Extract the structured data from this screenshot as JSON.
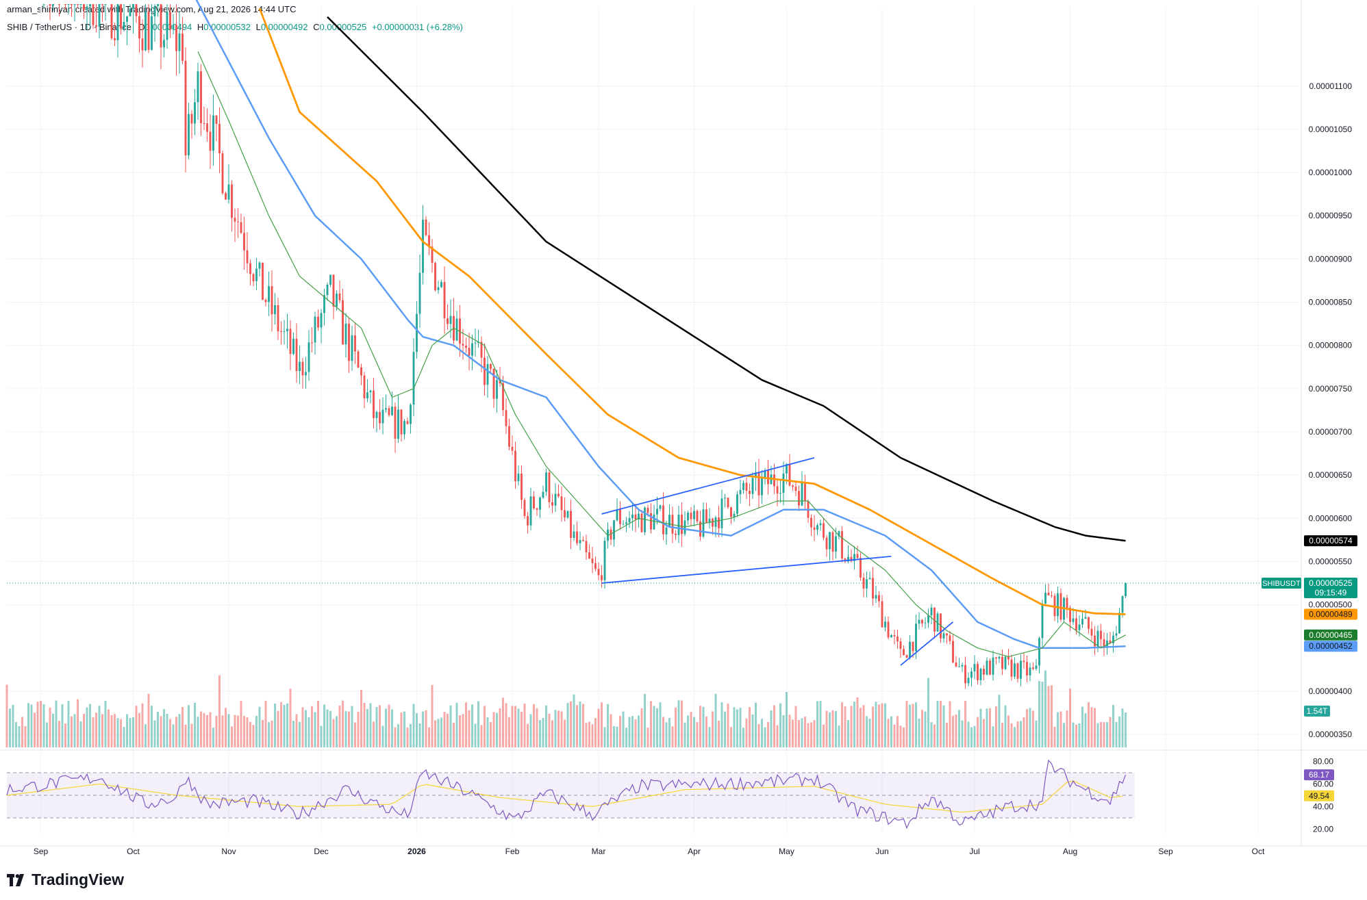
{
  "header": {
    "created_by": "arman_shirinyan created with TradingView.com, Aug 21, 2026 14:44 UTC"
  },
  "legend": {
    "symbol": "SHIB / TetherUS · 1D · Binance",
    "open_label": "O",
    "open": "0.00000494",
    "high_label": "H",
    "high": "0.00000532",
    "low_label": "L",
    "low": "0.00000492",
    "close_label": "C",
    "close": "0.00000525",
    "change": "+0.00000031 (+6.28%)"
  },
  "brand": {
    "name": "TradingView"
  },
  "colors": {
    "up": "#26a69a",
    "down": "#ef5350",
    "ma_black": "#000000",
    "ma_orange": "#ff9800",
    "ma_blue": "#5b9cf6",
    "ma_green": "#43a047",
    "rsi": "#7e57c2",
    "rsi_ma": "#f5d538",
    "trendline": "#2962ff"
  },
  "price_badges": [
    {
      "name": "ma-black-badge",
      "text": "0.00000574",
      "value": 5.74e-06,
      "bg": "#000000",
      "fg": "#ffffff"
    },
    {
      "name": "last-price-badge",
      "label": "SHIBUSDT",
      "text": "0.00000525",
      "sub": "09:15:49",
      "value": 5.25e-06,
      "bg": "#089981",
      "fg": "#ffffff"
    },
    {
      "name": "ma-orange-badge",
      "text": "0.00000489",
      "value": 4.89e-06,
      "bg": "#ff9800",
      "fg": "#131722"
    },
    {
      "name": "ma-green-badge",
      "text": "0.00000465",
      "value": 4.65e-06,
      "bg": "#1b7d2b",
      "fg": "#ffffff"
    },
    {
      "name": "ma-blue-badge",
      "text": "0.00000452",
      "value": 4.52e-06,
      "bg": "#5b9cf6",
      "fg": "#131722"
    }
  ],
  "volume_badge": {
    "text": "1.54T"
  },
  "rsi_badges": [
    {
      "name": "rsi-badge",
      "text": "68.17",
      "value": 68.17,
      "bg": "#7e57c2",
      "fg": "#ffffff"
    },
    {
      "name": "rsi-ma-badge",
      "text": "49.54",
      "value": 49.54,
      "bg": "#f5d538",
      "fg": "#131722"
    }
  ],
  "chart_data": {
    "type": "candlestick",
    "x_ticks": [
      {
        "label": "Sep",
        "day": 11,
        "bold": false
      },
      {
        "label": "Oct",
        "day": 41,
        "bold": false
      },
      {
        "label": "Nov",
        "day": 72,
        "bold": false
      },
      {
        "label": "Dec",
        "day": 102,
        "bold": false
      },
      {
        "label": "2026",
        "day": 133,
        "bold": true
      },
      {
        "label": "Feb",
        "day": 164,
        "bold": false
      },
      {
        "label": "Mar",
        "day": 192,
        "bold": false
      },
      {
        "label": "Apr",
        "day": 223,
        "bold": false
      },
      {
        "label": "May",
        "day": 253,
        "bold": false
      },
      {
        "label": "Jun",
        "day": 284,
        "bold": false
      },
      {
        "label": "Jul",
        "day": 314,
        "bold": false
      },
      {
        "label": "Aug",
        "day": 345,
        "bold": false
      },
      {
        "label": "Sep",
        "day": 376,
        "bold": false
      },
      {
        "label": "Oct",
        "day": 406,
        "bold": false
      }
    ],
    "x_range": [
      0,
      420
    ],
    "y_ticks": [
      {
        "label": "0.00001100",
        "value": 1.1e-05
      },
      {
        "label": "0.00001050",
        "value": 1.05e-05
      },
      {
        "label": "0.00001000",
        "value": 1e-05
      },
      {
        "label": "0.00000950",
        "value": 9.5e-06
      },
      {
        "label": "0.00000900",
        "value": 9e-06
      },
      {
        "label": "0.00000850",
        "value": 8.5e-06
      },
      {
        "label": "0.00000800",
        "value": 8e-06
      },
      {
        "label": "0.00000750",
        "value": 7.5e-06
      },
      {
        "label": "0.00000700",
        "value": 7e-06
      },
      {
        "label": "0.00000650",
        "value": 6.5e-06
      },
      {
        "label": "0.00000600",
        "value": 6e-06
      },
      {
        "label": "0.00000550",
        "value": 5.5e-06
      },
      {
        "label": "0.00000500",
        "value": 5e-06
      },
      {
        "label": "0.00000400",
        "value": 4e-06
      },
      {
        "label": "0.00000350",
        "value": 3.5e-06
      }
    ],
    "y_range": [
      3.35e-06,
      1.16e-05
    ],
    "price_anchors": [
      [
        0,
        1.25e-05
      ],
      [
        57,
        1.15e-05
      ],
      [
        58,
        1.02e-05
      ],
      [
        62,
        1.1e-05
      ],
      [
        72,
        9.8e-06
      ],
      [
        82,
        8.7e-06
      ],
      [
        95,
        7.7e-06
      ],
      [
        105,
        8.6e-06
      ],
      [
        110,
        8.1e-06
      ],
      [
        120,
        7.1e-06
      ],
      [
        130,
        7.1e-06
      ],
      [
        135,
        9.2e-06
      ],
      [
        145,
        8.3e-06
      ],
      [
        160,
        7.4e-06
      ],
      [
        168,
        6e-06
      ],
      [
        175,
        6.4e-06
      ],
      [
        185,
        5.7e-06
      ],
      [
        192,
        5.3e-06
      ],
      [
        197,
        6e-06
      ],
      [
        210,
        6e-06
      ],
      [
        225,
        5.9e-06
      ],
      [
        240,
        6.3e-06
      ],
      [
        252,
        6.5e-06
      ],
      [
        258,
        6.3e-06
      ],
      [
        263,
        5.9e-06
      ],
      [
        270,
        5.7e-06
      ],
      [
        280,
        5.2e-06
      ],
      [
        290,
        4.4e-06
      ],
      [
        300,
        4.9e-06
      ],
      [
        310,
        4.2e-06
      ],
      [
        322,
        4.3e-06
      ],
      [
        334,
        4.2e-06
      ],
      [
        336,
        5.1e-06
      ],
      [
        345,
        4.9e-06
      ],
      [
        358,
        4.5e-06
      ],
      [
        361,
        4.9e-06
      ],
      [
        363,
        5.2e-06
      ]
    ],
    "moving_averages": [
      {
        "color": "#000000",
        "width": 2.5,
        "points": [
          [
            104,
            1.18e-05
          ],
          [
            135,
            1.07e-05
          ],
          [
            175,
            9.2e-06
          ],
          [
            210,
            8.4e-06
          ],
          [
            245,
            7.6e-06
          ],
          [
            265,
            7.3e-06
          ],
          [
            290,
            6.7e-06
          ],
          [
            320,
            6.2e-06
          ],
          [
            340,
            5.9e-06
          ],
          [
            350,
            5.8e-06
          ],
          [
            363,
            5.74e-06
          ]
        ]
      },
      {
        "color": "#ff9800",
        "width": 2.8,
        "points": [
          [
            82,
            1.19e-05
          ],
          [
            95,
            1.07e-05
          ],
          [
            120,
            9.9e-06
          ],
          [
            135,
            9.2e-06
          ],
          [
            150,
            8.8e-06
          ],
          [
            175,
            7.9e-06
          ],
          [
            195,
            7.2e-06
          ],
          [
            218,
            6.7e-06
          ],
          [
            238,
            6.5e-06
          ],
          [
            262,
            6.4e-06
          ],
          [
            280,
            6.1e-06
          ],
          [
            300,
            5.7e-06
          ],
          [
            320,
            5.3e-06
          ],
          [
            336,
            5e-06
          ],
          [
            353,
            4.9e-06
          ],
          [
            363,
            4.89e-06
          ]
        ]
      },
      {
        "color": "#5b9cf6",
        "width": 2.5,
        "points": [
          [
            60,
            1.21e-05
          ],
          [
            85,
            1.04e-05
          ],
          [
            100,
            9.5e-06
          ],
          [
            115,
            9e-06
          ],
          [
            130,
            8.3e-06
          ],
          [
            135,
            8.1e-06
          ],
          [
            145,
            8e-06
          ],
          [
            160,
            7.6e-06
          ],
          [
            175,
            7.4e-06
          ],
          [
            192,
            6.6e-06
          ],
          [
            205,
            6.1e-06
          ],
          [
            215,
            5.9e-06
          ],
          [
            235,
            5.8e-06
          ],
          [
            252,
            6.1e-06
          ],
          [
            265,
            6.1e-06
          ],
          [
            285,
            5.8e-06
          ],
          [
            300,
            5.4e-06
          ],
          [
            315,
            4.8e-06
          ],
          [
            327,
            4.6e-06
          ],
          [
            335,
            4.5e-06
          ],
          [
            350,
            4.5e-06
          ],
          [
            363,
            4.52e-06
          ]
        ]
      },
      {
        "color": "#43a047",
        "width": 1.2,
        "points": [
          [
            62,
            1.14e-05
          ],
          [
            72,
            1.06e-05
          ],
          [
            85,
            9.5e-06
          ],
          [
            95,
            8.8e-06
          ],
          [
            105,
            8.5e-06
          ],
          [
            115,
            8.2e-06
          ],
          [
            125,
            7.4e-06
          ],
          [
            132,
            7.5e-06
          ],
          [
            138,
            8e-06
          ],
          [
            145,
            8.2e-06
          ],
          [
            155,
            8e-06
          ],
          [
            165,
            7.2e-06
          ],
          [
            175,
            6.6e-06
          ],
          [
            185,
            6.2e-06
          ],
          [
            195,
            5.8e-06
          ],
          [
            205,
            6e-06
          ],
          [
            220,
            5.9e-06
          ],
          [
            235,
            6e-06
          ],
          [
            250,
            6.2e-06
          ],
          [
            260,
            6.2e-06
          ],
          [
            270,
            5.8e-06
          ],
          [
            285,
            5.4e-06
          ],
          [
            295,
            5e-06
          ],
          [
            305,
            4.7e-06
          ],
          [
            315,
            4.5e-06
          ],
          [
            325,
            4.4e-06
          ],
          [
            336,
            4.5e-06
          ],
          [
            343,
            4.8e-06
          ],
          [
            355,
            4.5e-06
          ],
          [
            363,
            4.65e-06
          ]
        ]
      }
    ],
    "trendlines": [
      [
        [
          193,
          6.05e-06
        ],
        [
          262,
          6.7e-06
        ]
      ],
      [
        [
          193,
          5.25e-06
        ],
        [
          287,
          5.56e-06
        ]
      ],
      [
        [
          290,
          4.3e-06
        ],
        [
          307,
          4.8e-06
        ]
      ]
    ],
    "rsi": {
      "y_ticks": [
        {
          "label": "80.00",
          "value": 80
        },
        {
          "label": "60.00",
          "value": 60
        },
        {
          "label": "40.00",
          "value": 40
        },
        {
          "label": "20.00",
          "value": 20
        }
      ],
      "y_range": [
        16,
        84
      ],
      "band": [
        30,
        70
      ],
      "mid": 50,
      "rsi_anchors": [
        [
          0,
          55
        ],
        [
          30,
          66
        ],
        [
          45,
          42
        ],
        [
          55,
          48
        ],
        [
          58,
          66
        ],
        [
          65,
          42
        ],
        [
          80,
          45
        ],
        [
          95,
          33
        ],
        [
          110,
          55
        ],
        [
          125,
          36
        ],
        [
          130,
          32
        ],
        [
          135,
          70
        ],
        [
          150,
          52
        ],
        [
          165,
          28
        ],
        [
          175,
          52
        ],
        [
          190,
          33
        ],
        [
          205,
          58
        ],
        [
          230,
          60
        ],
        [
          250,
          62
        ],
        [
          262,
          65
        ],
        [
          275,
          38
        ],
        [
          285,
          30
        ],
        [
          292,
          25
        ],
        [
          300,
          48
        ],
        [
          305,
          38
        ],
        [
          310,
          25
        ],
        [
          325,
          40
        ],
        [
          336,
          43
        ],
        [
          338,
          78
        ],
        [
          345,
          63
        ],
        [
          350,
          55
        ],
        [
          358,
          45
        ],
        [
          363,
          68
        ]
      ],
      "ma_anchors": [
        [
          0,
          50
        ],
        [
          30,
          60
        ],
        [
          55,
          50
        ],
        [
          95,
          40
        ],
        [
          125,
          42
        ],
        [
          135,
          60
        ],
        [
          160,
          48
        ],
        [
          190,
          40
        ],
        [
          220,
          55
        ],
        [
          262,
          58
        ],
        [
          285,
          42
        ],
        [
          310,
          35
        ],
        [
          336,
          42
        ],
        [
          345,
          64
        ],
        [
          358,
          48
        ],
        [
          363,
          49.54
        ]
      ]
    },
    "volume": {
      "max_units": 1.0
    }
  }
}
